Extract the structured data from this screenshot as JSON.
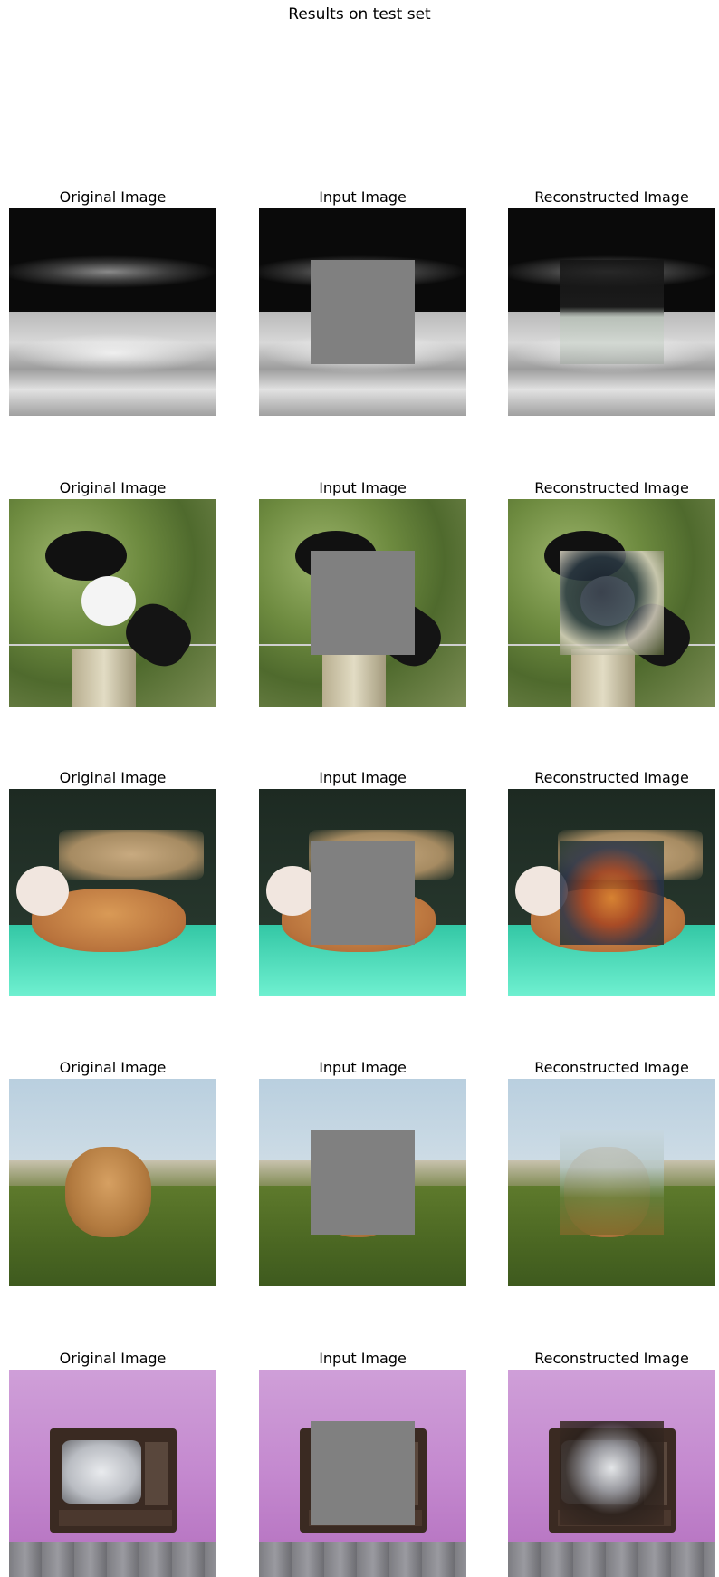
{
  "figure": {
    "suptitle": "Results on test set",
    "column_titles": [
      "Original Image",
      "Input Image",
      "Reconstructed Image"
    ],
    "rows": [
      {
        "subject": "microscopy-worm"
      },
      {
        "subject": "magpie-on-post"
      },
      {
        "subject": "dog-crufts"
      },
      {
        "subject": "dog-on-grass"
      },
      {
        "subject": "vintage-tv"
      }
    ]
  }
}
